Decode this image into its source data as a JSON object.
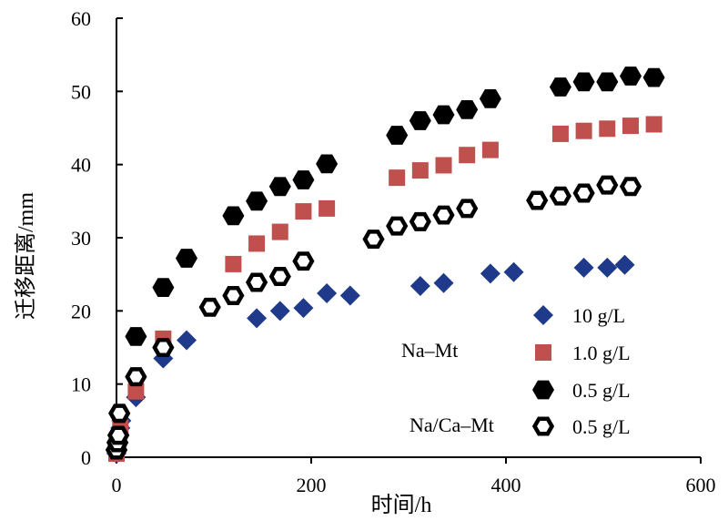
{
  "chart_data": {
    "type": "scatter",
    "xlabel": "时间/h",
    "ylabel": "迁移距离/mm",
    "xlim": [
      0,
      600
    ],
    "ylim": [
      0,
      60
    ],
    "x_ticks": [
      "0",
      "200",
      "400",
      "600"
    ],
    "y_ticks": [
      "0",
      "10",
      "20",
      "30",
      "40",
      "50",
      "60"
    ],
    "grid": false,
    "legend_position": "bottom-right",
    "legend_group_labels": [
      "Na–Mt",
      "Na/Ca–Mt"
    ],
    "series": [
      {
        "name": "10 g/L",
        "group": "Na–Mt",
        "marker": "diamond",
        "color": "#1f3a8a",
        "x": [
          0,
          1,
          2,
          3,
          4,
          5,
          20,
          48,
          72,
          144,
          168,
          192,
          216,
          240,
          312,
          336,
          384,
          408,
          480,
          504,
          522
        ],
        "y": [
          0.5,
          1,
          2,
          3,
          4,
          5,
          8.2,
          13.5,
          16,
          19,
          20,
          20.4,
          22.4,
          22.1,
          23.4,
          23.8,
          25.1,
          25.3,
          25.9,
          25.9,
          26.3
        ]
      },
      {
        "name": "1.0 g/L",
        "group": "Na–Mt",
        "marker": "square",
        "color": "#c0504d",
        "x": [
          0,
          1,
          2,
          4,
          20,
          48,
          120,
          144,
          168,
          192,
          216,
          288,
          312,
          336,
          360,
          384,
          456,
          480,
          504,
          528,
          552
        ],
        "y": [
          0.5,
          1.5,
          2.5,
          4,
          9,
          16.2,
          26.4,
          29.2,
          30.8,
          33.6,
          34,
          38.2,
          39.2,
          39.9,
          41.3,
          42,
          44.2,
          44.6,
          44.9,
          45.3,
          45.5
        ]
      },
      {
        "name": "0.5 g/L",
        "group": "Na–Mt",
        "marker": "filled-hexagon",
        "color": "#000000",
        "x": [
          0,
          1,
          2,
          3,
          20,
          48,
          72,
          120,
          144,
          168,
          192,
          216,
          288,
          312,
          336,
          360,
          384,
          456,
          480,
          504,
          528,
          552
        ],
        "y": [
          1,
          2,
          3,
          6,
          16.5,
          23.2,
          27.2,
          33,
          35,
          37,
          37.9,
          40.1,
          44,
          46,
          46.8,
          47.5,
          49,
          50.6,
          51.3,
          51.3,
          52.1,
          51.9
        ]
      },
      {
        "name": "0.5 g/L",
        "group": "Na/Ca–Mt",
        "marker": "open-hexagon",
        "color": "#000000",
        "x": [
          0,
          1,
          2,
          3,
          20,
          48,
          96,
          120,
          144,
          168,
          192,
          264,
          288,
          312,
          336,
          360,
          432,
          456,
          480,
          504,
          528
        ],
        "y": [
          1,
          2,
          3,
          6,
          11,
          15,
          20.5,
          22.1,
          23.9,
          24.7,
          26.8,
          29.8,
          31.6,
          32.2,
          33.1,
          34,
          35.1,
          35.7,
          36.1,
          37.2,
          37
        ]
      }
    ]
  }
}
